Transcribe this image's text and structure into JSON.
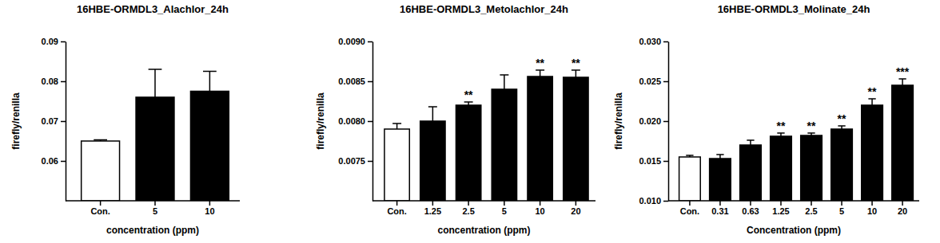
{
  "chart_data": [
    {
      "type": "bar",
      "title": "16HBE-ORMDL3_Alachlor_24h",
      "y_label": "firefly/renilla",
      "x_label": "concentration (ppm)",
      "categories": [
        "Con.",
        "5",
        "10"
      ],
      "values": [
        0.065,
        0.076,
        0.0775
      ],
      "errors": [
        0.0003,
        0.007,
        0.005
      ],
      "annotations": [
        null,
        null,
        null
      ],
      "colors": [
        "#ffffff",
        "#000000",
        "#000000"
      ],
      "ylim": [
        0.05,
        0.09
      ],
      "yticks": [
        0.06,
        0.07,
        0.08,
        0.09
      ]
    },
    {
      "type": "bar",
      "title": "16HBE-ORMDL3_Metolachlor_24h",
      "y_label": "firefly/renilla",
      "x_label": "concentration (ppm)",
      "categories": [
        "Con.",
        "1.25",
        "2.5",
        "5",
        "10",
        "20"
      ],
      "values": [
        0.0079,
        0.008,
        0.0082,
        0.0084,
        0.00856,
        0.00855
      ],
      "errors": [
        7e-05,
        0.00018,
        4e-05,
        0.00018,
        8e-05,
        9e-05
      ],
      "annotations": [
        null,
        null,
        "**",
        null,
        "**",
        "**"
      ],
      "colors": [
        "#ffffff",
        "#000000",
        "#000000",
        "#000000",
        "#000000",
        "#000000"
      ],
      "ylim": [
        0.007,
        0.009
      ],
      "yticks": [
        0.0075,
        {
          "value": 0.008,
          "label": "0.0080"
        },
        0.0085,
        {
          "value": 0.009,
          "label": "0.0090"
        }
      ]
    },
    {
      "type": "bar",
      "title": "16HBE-ORMDL3_Molinate_24h",
      "y_label": "firefly/renilla",
      "x_label": "Concentration (ppm)",
      "categories": [
        "Con.",
        "0.31",
        "0.63",
        "1.25",
        "2.5",
        "5",
        "10",
        "20"
      ],
      "values": [
        0.0155,
        0.0153,
        0.017,
        0.0181,
        0.0182,
        0.019,
        0.022,
        0.0245
      ],
      "errors": [
        0.0002,
        0.0005,
        0.0006,
        0.0004,
        0.0003,
        0.0004,
        0.0008,
        0.0008
      ],
      "annotations": [
        null,
        null,
        null,
        "**",
        "**",
        "**",
        "**",
        "***"
      ],
      "colors": [
        "#ffffff",
        "#000000",
        "#000000",
        "#000000",
        "#000000",
        "#000000",
        "#000000",
        "#000000"
      ],
      "ylim": [
        0.01,
        0.03
      ],
      "yticks": [
        {
          "value": 0.01,
          "label": "0.010"
        },
        {
          "value": 0.015,
          "label": "0.015"
        },
        {
          "value": 0.02,
          "label": "0.020"
        },
        {
          "value": 0.025,
          "label": "0.025"
        },
        {
          "value": 0.03,
          "label": "0.030"
        }
      ]
    }
  ]
}
